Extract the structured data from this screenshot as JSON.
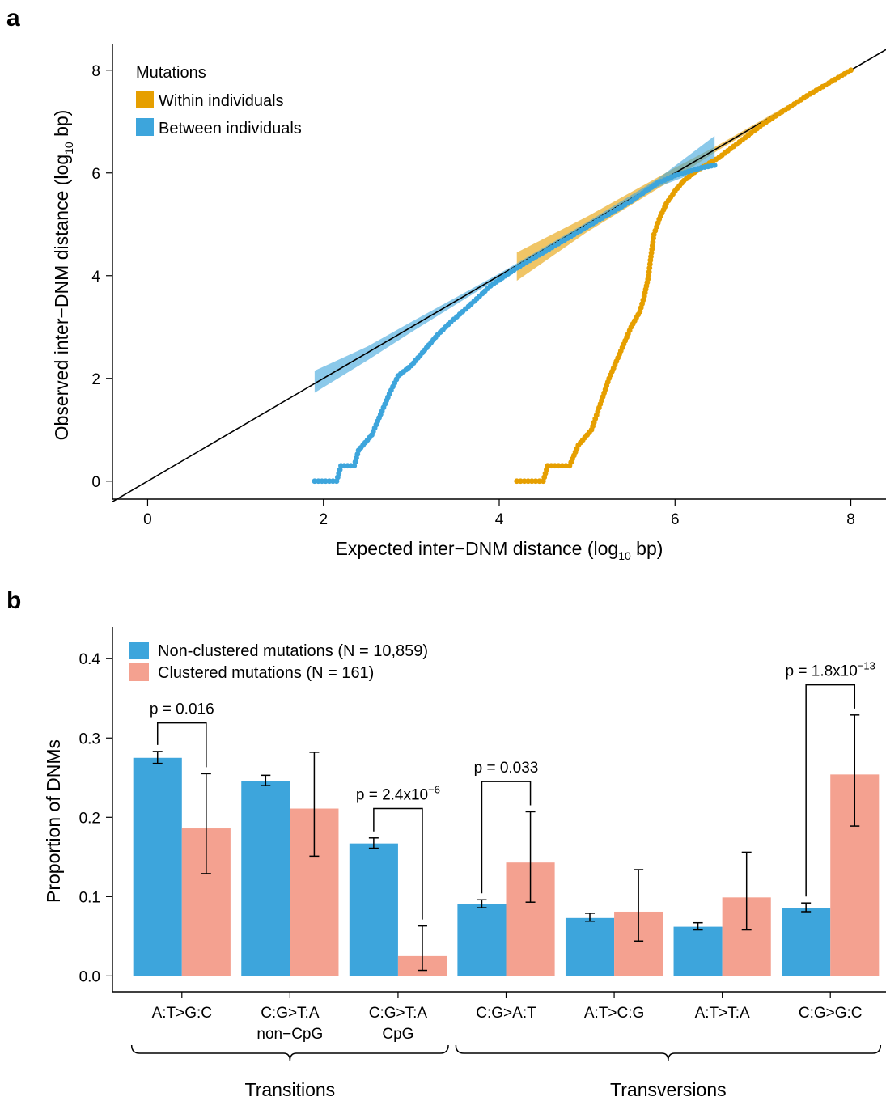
{
  "panel_a": {
    "label": "a",
    "chart_data": {
      "type": "scatter",
      "xlabel_main": "Expected inter−DNM distance (log",
      "xlabel_sub": "10",
      "xlabel_end": " bp)",
      "ylabel_main": "Observed inter−DNM distance (log",
      "ylabel_sub": "10",
      "ylabel_end": " bp)",
      "xlim": [
        -0.4,
        8.4
      ],
      "ylim": [
        -0.35,
        8.5
      ],
      "x_ticks": [
        0,
        2,
        4,
        6,
        8
      ],
      "y_ticks": [
        0,
        2,
        4,
        6,
        8
      ],
      "legend": {
        "title": "Mutations",
        "position": "top-left",
        "entries": [
          "Within individuals",
          "Between individuals"
        ]
      },
      "reference_line": {
        "slope": 1,
        "intercept": 0,
        "color": "#000000"
      },
      "series": [
        {
          "name": "Within individuals",
          "color": "#E69F00",
          "band": [
            [
              4.2,
              3.9,
              4.45
            ],
            [
              5.0,
              4.85,
              5.15
            ],
            [
              6.0,
              5.9,
              6.1
            ],
            [
              6.5,
              6.45,
              6.55
            ],
            [
              8.0,
              7.98,
              8.02
            ]
          ],
          "points": [
            [
              4.2,
              0
            ],
            [
              4.5,
              0
            ],
            [
              4.55,
              0.3
            ],
            [
              4.8,
              0.3
            ],
            [
              4.9,
              0.7
            ],
            [
              5.05,
              1.0
            ],
            [
              5.15,
              1.5
            ],
            [
              5.25,
              2.0
            ],
            [
              5.3,
              2.2
            ],
            [
              5.4,
              2.6
            ],
            [
              5.5,
              3.0
            ],
            [
              5.6,
              3.3
            ],
            [
              5.65,
              3.6
            ],
            [
              5.7,
              4.0
            ],
            [
              5.72,
              4.3
            ],
            [
              5.76,
              4.8
            ],
            [
              5.82,
              5.1
            ],
            [
              5.9,
              5.4
            ],
            [
              6.0,
              5.65
            ],
            [
              6.1,
              5.85
            ],
            [
              6.25,
              6.05
            ],
            [
              6.5,
              6.3
            ],
            [
              7.0,
              6.95
            ],
            [
              7.5,
              7.5
            ],
            [
              8.0,
              8.0
            ]
          ]
        },
        {
          "name": "Between individuals",
          "color": "#3DA5DC",
          "band": [
            [
              1.9,
              1.72,
              2.15
            ],
            [
              2.5,
              2.35,
              2.62
            ],
            [
              3.0,
              2.9,
              3.1
            ],
            [
              4.0,
              3.96,
              4.04
            ],
            [
              5.0,
              4.96,
              5.04
            ],
            [
              5.8,
              5.72,
              5.88
            ],
            [
              6.45,
              6.15,
              6.72
            ]
          ],
          "points": [
            [
              1.9,
              0
            ],
            [
              2.15,
              0
            ],
            [
              2.2,
              0.3
            ],
            [
              2.35,
              0.3
            ],
            [
              2.4,
              0.6
            ],
            [
              2.55,
              0.9
            ],
            [
              2.65,
              1.3
            ],
            [
              2.75,
              1.7
            ],
            [
              2.85,
              2.05
            ],
            [
              3.0,
              2.25
            ],
            [
              3.15,
              2.55
            ],
            [
              3.3,
              2.85
            ],
            [
              3.45,
              3.1
            ],
            [
              3.65,
              3.4
            ],
            [
              3.9,
              3.8
            ],
            [
              4.2,
              4.15
            ],
            [
              4.6,
              4.55
            ],
            [
              5.1,
              5.05
            ],
            [
              5.5,
              5.45
            ],
            [
              5.8,
              5.8
            ],
            [
              6.0,
              5.95
            ],
            [
              6.3,
              6.1
            ],
            [
              6.45,
              6.15
            ]
          ]
        }
      ]
    }
  },
  "panel_b": {
    "label": "b",
    "chart_data": {
      "type": "bar",
      "ylabel": "Proportion of DNMs",
      "ylim": [
        -0.02,
        0.44
      ],
      "y_ticks": [
        "0.0",
        "0.1",
        "0.2",
        "0.3",
        "0.4"
      ],
      "categories": [
        [
          "A:T>G:C"
        ],
        [
          "C:G>T:A",
          "non−CpG"
        ],
        [
          "C:G>T:A",
          "CpG"
        ],
        [
          "C:G>A:T"
        ],
        [
          "A:T>C:G"
        ],
        [
          "A:T>T:A"
        ],
        [
          "C:G>G:C"
        ]
      ],
      "legend": {
        "position": "top-left",
        "entries": [
          "Non-clustered mutations (N = 10,859)",
          "Clustered mutations (N = 161)"
        ]
      },
      "series": [
        {
          "name": "Non-clustered mutations (N = 10,859)",
          "color": "#3DA5DC",
          "values": [
            0.275,
            0.246,
            0.167,
            0.091,
            0.073,
            0.062,
            0.086
          ],
          "err_low": [
            0.268,
            0.24,
            0.161,
            0.086,
            0.069,
            0.058,
            0.081
          ],
          "err_high": [
            0.283,
            0.253,
            0.174,
            0.096,
            0.079,
            0.067,
            0.092
          ]
        },
        {
          "name": "Clustered mutations (N = 161)",
          "color": "#F4A190",
          "values": [
            0.186,
            0.211,
            0.025,
            0.143,
            0.081,
            0.099,
            0.254
          ],
          "err_low": [
            0.129,
            0.151,
            0.007,
            0.093,
            0.044,
            0.058,
            0.189
          ],
          "err_high": [
            0.255,
            0.282,
            0.063,
            0.207,
            0.134,
            0.156,
            0.329
          ]
        }
      ],
      "annotations": [
        {
          "category": 0,
          "text": "p = 0.016",
          "exp": "",
          "y": 0.319
        },
        {
          "category": 2,
          "text": "p = 2.4x10",
          "exp": "−6",
          "y": 0.211
        },
        {
          "category": 3,
          "text": "p = 0.033",
          "exp": "",
          "y": 0.245
        },
        {
          "category": 6,
          "text": "p = 1.8x10",
          "exp": "−13",
          "y": 0.367
        }
      ],
      "groups": [
        {
          "label": "Transitions",
          "from": 0,
          "to": 2
        },
        {
          "label": "Transversions",
          "from": 3,
          "to": 6
        }
      ]
    }
  }
}
